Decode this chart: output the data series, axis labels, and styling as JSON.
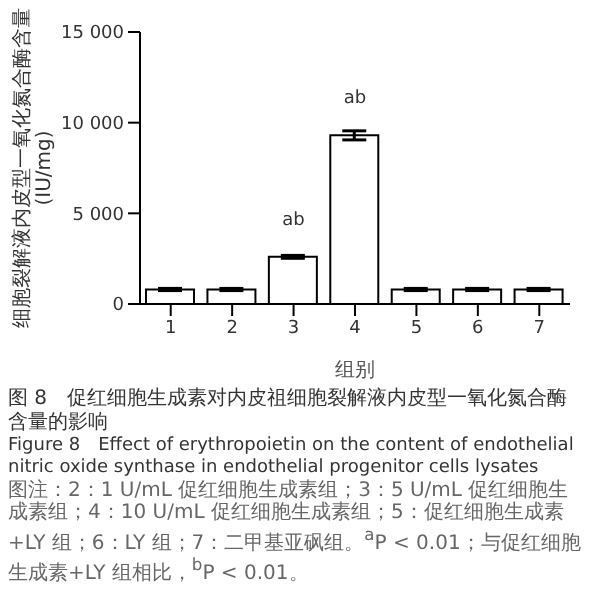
{
  "chart_data": {
    "type": "bar",
    "title": "图 8　促红细胞生成素对内皮祖细胞裂解液内皮型一氧化氮合酶含量的影响",
    "subtitle": "Figure 8　Effect of erythropoietin on the content of endothelial nitric oxide synthase in endothelial progenitor cells lysates",
    "xlabel": "组别",
    "ylabel": "细胞裂解液内皮型一氧化氮合酶含量 (IU/mg)",
    "categories": [
      "1",
      "2",
      "3",
      "4",
      "5",
      "6",
      "7"
    ],
    "values": [
      800,
      800,
      2600,
      9300,
      800,
      800,
      800
    ],
    "errors": [
      60,
      60,
      80,
      250,
      60,
      60,
      60
    ],
    "color": "#ffffff",
    "ylim": [
      0,
      15000
    ],
    "yticks": [
      {
        "value": 0,
        "label": "0"
      },
      {
        "value": 5000,
        "label": "5 000"
      },
      {
        "value": 10000,
        "label": "10 000"
      },
      {
        "value": 15000,
        "label": "15 000"
      }
    ],
    "grid": false,
    "legend": false,
    "annotations": [
      {
        "text": "ab",
        "x": "3",
        "y": 2600
      },
      {
        "text": "ab",
        "x": "4",
        "y": 9300
      },
      "图注：2：1 U/mL 促红细胞生成素组；3：5 U/mL 促红细胞生成素组；4：10 U/mL 促红细胞生成素组；5：促红细胞生成素+LY 组；6：LY 组；7：二甲基亚砜组。$^{a}$P < 0.01；与促红细胞生成素+LY 组相比，$^{b}$P < 0.01。"
    ]
  }
}
